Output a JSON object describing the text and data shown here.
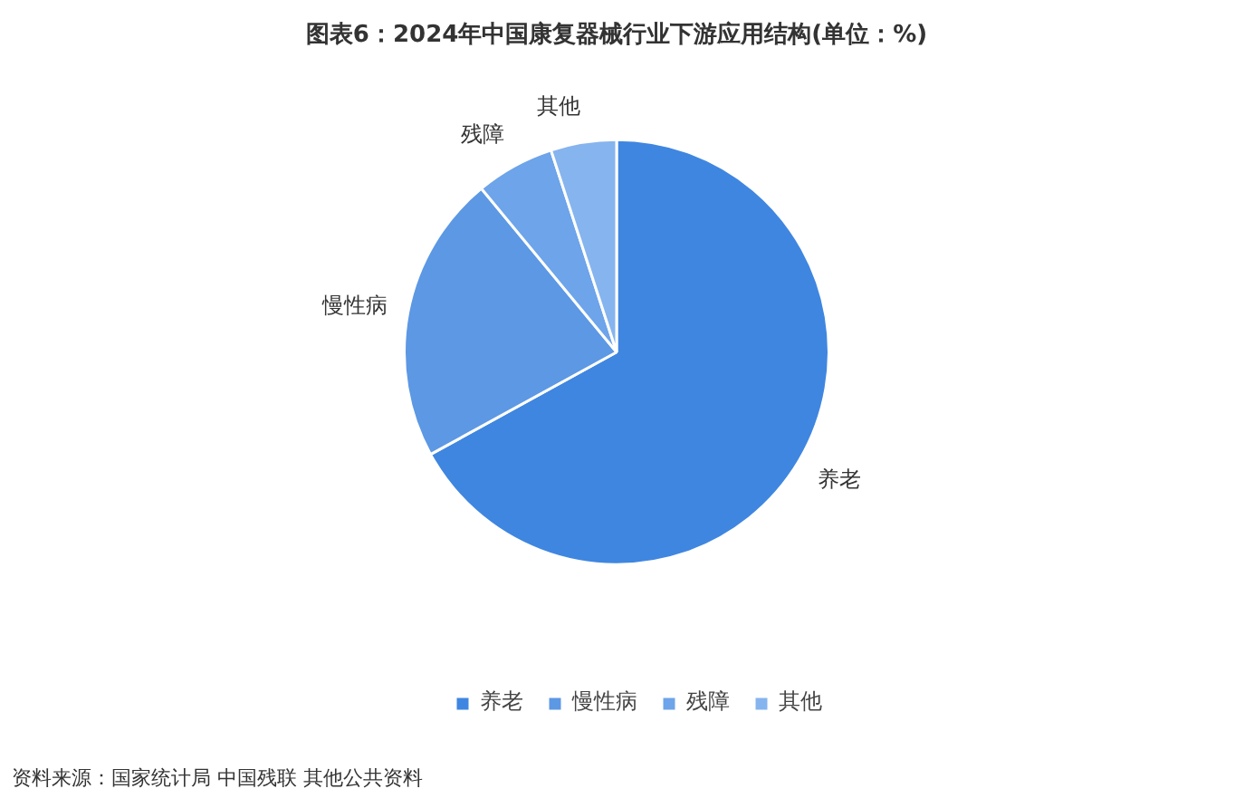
{
  "chart_data": {
    "type": "pie",
    "title": "图表6：2024年中国康复器械行业下游应用结构(单位：%)",
    "categories": [
      "养老",
      "慢性病",
      "残障",
      "其他"
    ],
    "values": [
      67,
      22,
      6,
      5
    ],
    "colors": [
      "#3f86e0",
      "#5c98e4",
      "#6da4ea",
      "#86b4ee"
    ],
    "legend": "bottom",
    "annotations": [
      "资料来源：国家统计局 中国残联 其他公共资料"
    ]
  }
}
